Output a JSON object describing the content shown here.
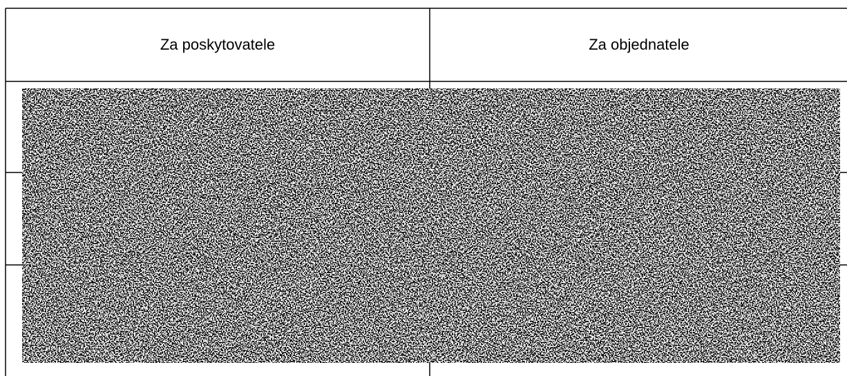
{
  "table": {
    "headers": [
      "Za poskytovatele",
      "Za objednatele"
    ]
  }
}
